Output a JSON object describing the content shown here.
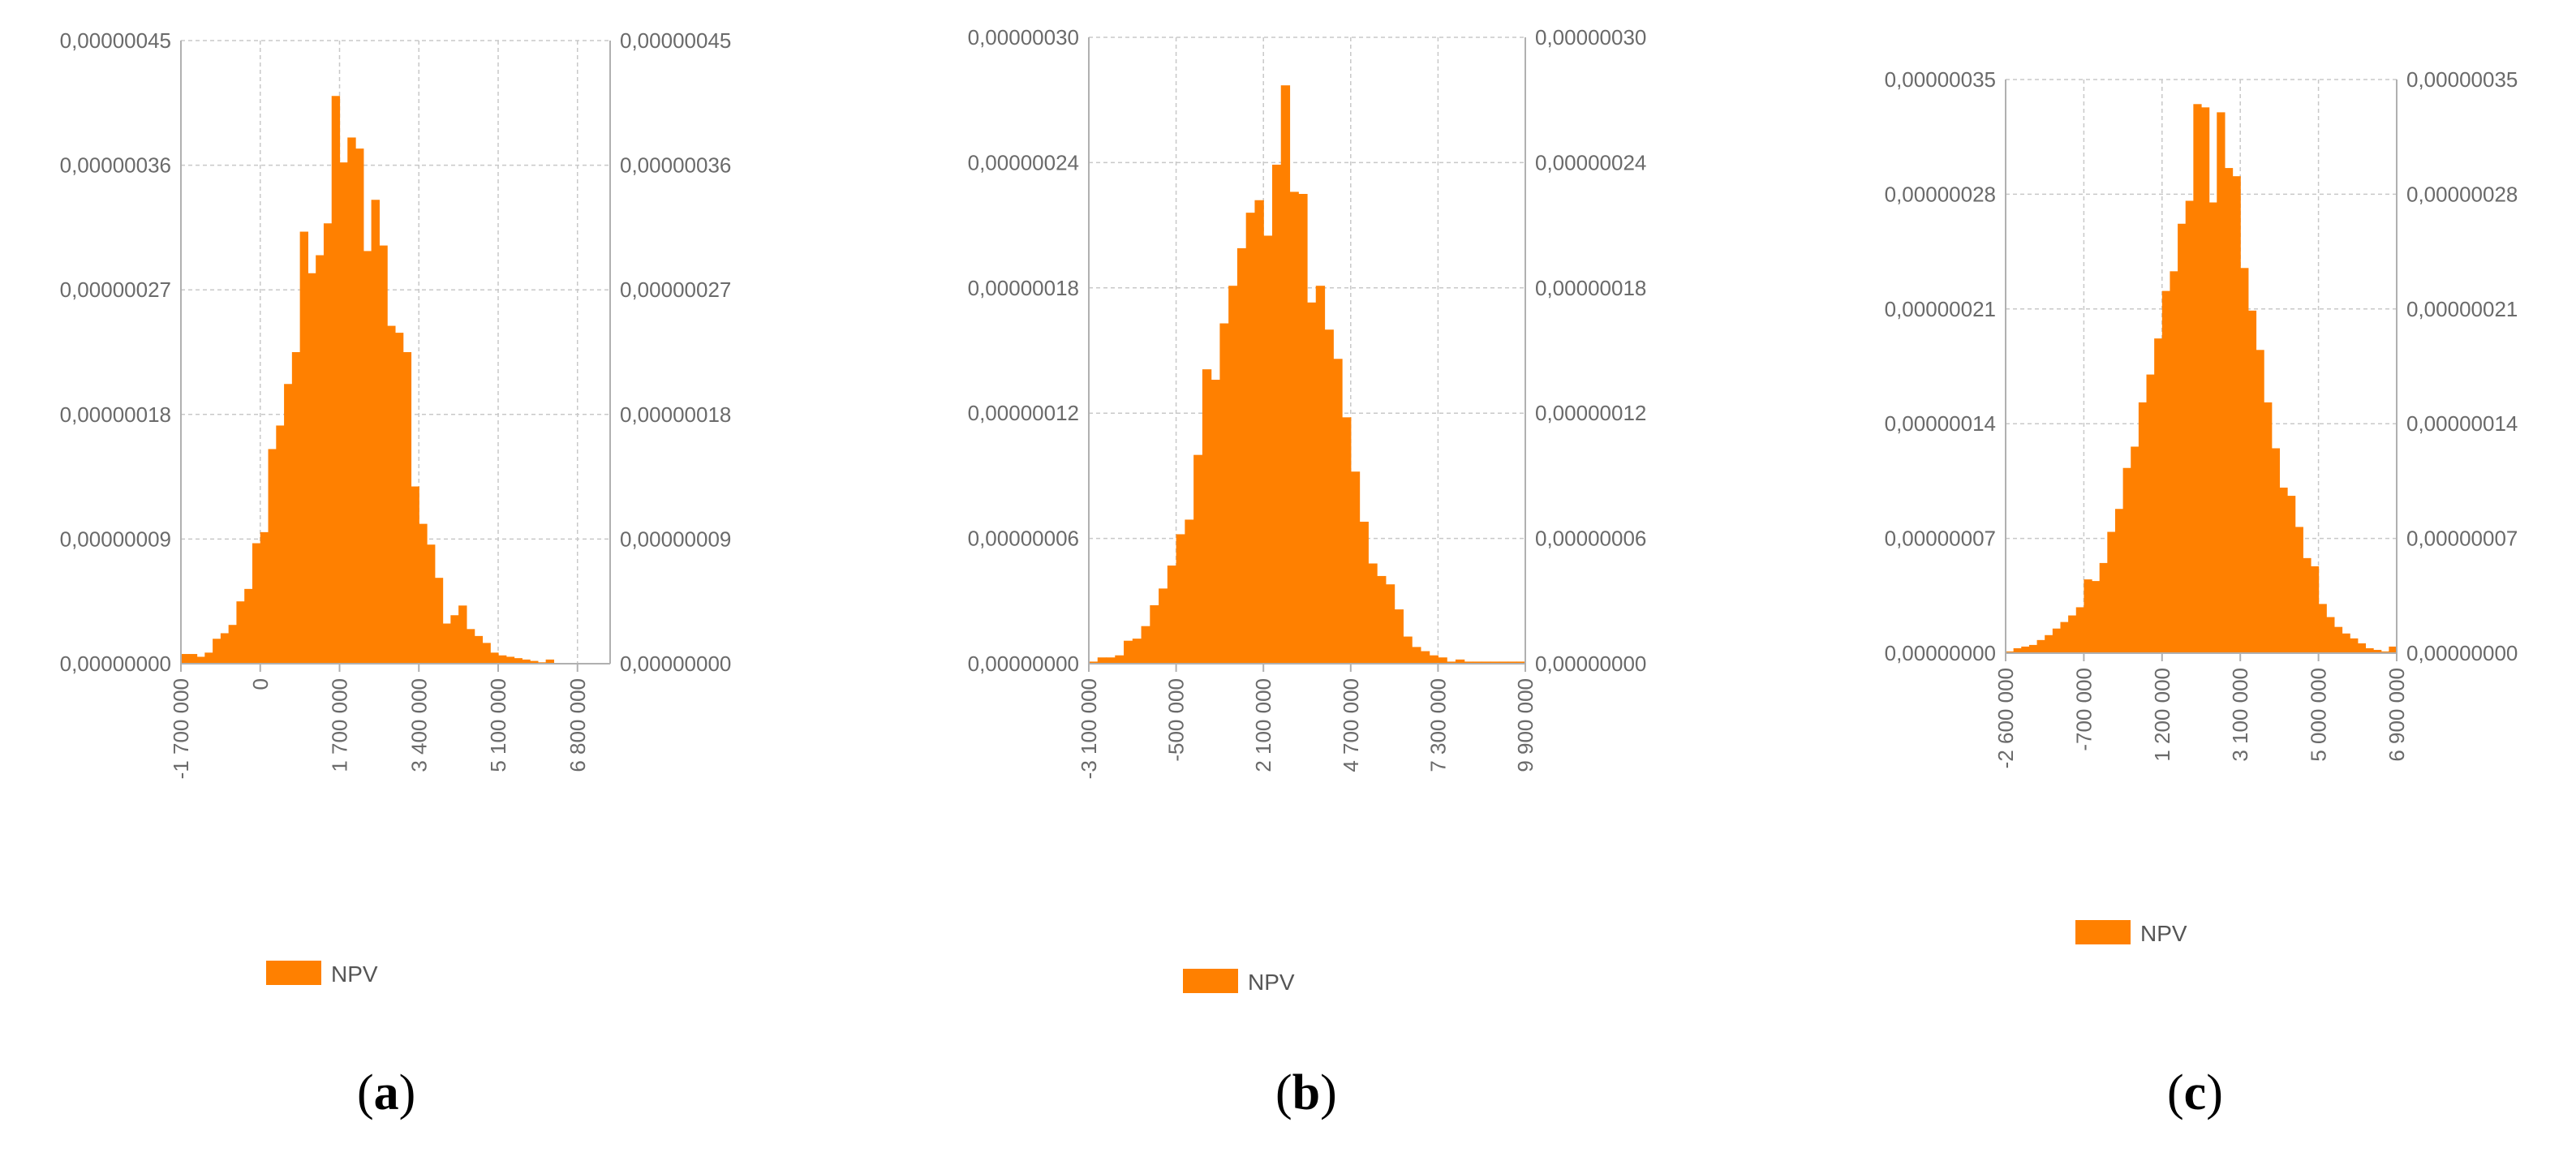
{
  "chart_data": [
    {
      "type": "bar",
      "panel_label": "a",
      "ylim": [
        0,
        4.5e-07
      ],
      "y_ticks": [
        "0,00000000",
        "0,00000009",
        "0,00000018",
        "0,00000027",
        "0,00000036",
        "0,00000045"
      ],
      "xlim": [
        -1700000,
        7500000
      ],
      "x_ticks": [
        -1700000,
        0,
        1700000,
        3400000,
        5100000,
        6800000
      ],
      "x_tick_labels": [
        "-1 700 000",
        "0",
        "1 700 000",
        "3 400 000",
        "5 100 000",
        "6 800 000"
      ],
      "bin_start": -1700000,
      "bin_width": 170000,
      "values": [
        7e-09,
        7e-09,
        5e-09,
        8e-09,
        1.8e-08,
        2.2e-08,
        2.8e-08,
        4.5e-08,
        5.4e-08,
        8.7e-08,
        9.5e-08,
        1.55e-07,
        1.72e-07,
        2.02e-07,
        2.25e-07,
        3.12e-07,
        2.82e-07,
        2.95e-07,
        3.18e-07,
        4.1e-07,
        3.62e-07,
        3.8e-07,
        3.72e-07,
        2.98e-07,
        3.35e-07,
        3.02e-07,
        2.44e-07,
        2.39e-07,
        2.25e-07,
        1.28e-07,
        1.01e-07,
        8.6e-08,
        6.2e-08,
        2.9e-08,
        3.5e-08,
        4.2e-08,
        2.5e-08,
        2e-08,
        1.5e-08,
        8e-09,
        6e-09,
        5e-09,
        4e-09,
        3e-09,
        2e-09,
        1e-09,
        3e-09
      ],
      "grid": true,
      "color": "#FF8000",
      "legend": "NPV",
      "legend_position": "bottom"
    },
    {
      "type": "bar",
      "panel_label": "b",
      "ylim": [
        0,
        3e-07
      ],
      "y_ticks": [
        "0,00000000",
        "0,00000006",
        "0,00000012",
        "0,00000018",
        "0,00000024",
        "0,00000030"
      ],
      "xlim": [
        -3100000,
        9900000
      ],
      "x_ticks": [
        -3100000,
        -500000,
        2100000,
        4700000,
        7300000,
        9900000
      ],
      "x_tick_labels": [
        "-3 100 000",
        "-500 000",
        "2 100 000",
        "4 700 000",
        "7 300 000",
        "9 900 000"
      ],
      "bin_start": -3100000,
      "bin_width": 260000,
      "values": [
        1e-09,
        3e-09,
        3e-09,
        4e-09,
        1.1e-08,
        1.2e-08,
        1.8e-08,
        2.8e-08,
        3.6e-08,
        4.7e-08,
        6.2e-08,
        6.9e-08,
        1e-07,
        1.41e-07,
        1.36e-07,
        1.63e-07,
        1.81e-07,
        1.99e-07,
        2.16e-07,
        2.22e-07,
        2.05e-07,
        2.39e-07,
        2.77e-07,
        2.26e-07,
        2.25e-07,
        1.73e-07,
        1.81e-07,
        1.6e-07,
        1.46e-07,
        1.18e-07,
        9.2e-08,
        6.8e-08,
        4.8e-08,
        4.2e-08,
        3.8e-08,
        2.6e-08,
        1.3e-08,
        8e-09,
        6e-09,
        4e-09,
        3e-09,
        1e-09,
        2e-09,
        1e-09,
        1e-09,
        1e-09,
        1e-09,
        1e-09,
        1e-09,
        1e-09
      ],
      "grid": true,
      "color": "#FF8000",
      "legend": "NPV",
      "legend_position": "bottom"
    },
    {
      "type": "bar",
      "panel_label": "c",
      "ylim": [
        0,
        3.5e-07
      ],
      "y_ticks": [
        "0,00000000",
        "0,00000007",
        "0,00000014",
        "0,00000021",
        "0,00000028",
        "0,00000035"
      ],
      "xlim": [
        -2600000,
        6900000
      ],
      "x_ticks": [
        -2600000,
        -700000,
        1200000,
        3100000,
        5000000,
        6900000
      ],
      "x_tick_labels": [
        "-2 600 000",
        "-700 000",
        "1 200 000",
        "3 100 000",
        "5 000 000",
        "6 900 000"
      ],
      "bin_start": -2600000,
      "bin_width": 190000,
      "values": [
        1e-09,
        3e-09,
        4e-09,
        5e-09,
        8e-09,
        1.1e-08,
        1.5e-08,
        1.9e-08,
        2.3e-08,
        2.8e-08,
        4.5e-08,
        4.4e-08,
        5.5e-08,
        7.4e-08,
        8.8e-08,
        1.13e-07,
        1.26e-07,
        1.53e-07,
        1.7e-07,
        1.92e-07,
        2.21e-07,
        2.33e-07,
        2.62e-07,
        2.76e-07,
        3.35e-07,
        3.33e-07,
        2.75e-07,
        3.3e-07,
        2.96e-07,
        2.91e-07,
        2.35e-07,
        2.09e-07,
        1.85e-07,
        1.53e-07,
        1.25e-07,
        1.01e-07,
        9.6e-08,
        7.7e-08,
        5.8e-08,
        5.3e-08,
        3e-08,
        2.2e-08,
        1.6e-08,
        1.2e-08,
        9e-09,
        6e-09,
        3e-09,
        2e-09,
        1e-09,
        4e-09
      ],
      "grid": true,
      "color": "#FF8000",
      "legend": "NPV",
      "legend_position": "bottom"
    }
  ],
  "captions": [
    {
      "open": "(",
      "letter": "a",
      "close": ")"
    },
    {
      "open": "(",
      "letter": "b",
      "close": ")"
    },
    {
      "open": "(",
      "letter": "c",
      "close": ")"
    }
  ]
}
